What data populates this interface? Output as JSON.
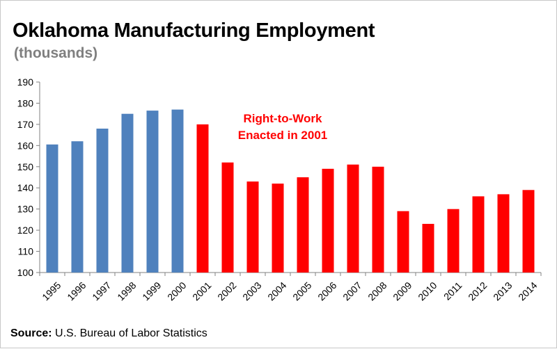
{
  "title": "Oklahoma Manufacturing Employment",
  "subtitle": "(thousands)",
  "annotation": {
    "line1": "Right-to-Work",
    "line2": "Enacted in 2001"
  },
  "source": {
    "label": "Source:",
    "text": " U.S. Bureau of Labor Statistics"
  },
  "colors": {
    "before": "#4f81bd",
    "after": "#ff0000",
    "annotation": "#ff0000",
    "axis": "#808080"
  },
  "chart_data": {
    "type": "bar",
    "title": "Oklahoma Manufacturing Employment",
    "subtitle": "(thousands)",
    "categories": [
      "1995",
      "1996",
      "1997",
      "1998",
      "1999",
      "2000",
      "2001",
      "2002",
      "2003",
      "2004",
      "2005",
      "2006",
      "2007",
      "2008",
      "2009",
      "2010",
      "2011",
      "2012",
      "2013",
      "2014"
    ],
    "values": [
      160.5,
      162,
      168,
      175,
      176.5,
      177,
      170,
      152,
      143,
      142,
      145,
      149,
      151,
      150,
      129,
      123,
      130,
      136,
      137,
      139
    ],
    "bar_colors": [
      "#4f81bd",
      "#4f81bd",
      "#4f81bd",
      "#4f81bd",
      "#4f81bd",
      "#4f81bd",
      "#ff0000",
      "#ff0000",
      "#ff0000",
      "#ff0000",
      "#ff0000",
      "#ff0000",
      "#ff0000",
      "#ff0000",
      "#ff0000",
      "#ff0000",
      "#ff0000",
      "#ff0000",
      "#ff0000",
      "#ff0000"
    ],
    "yticks": [
      "100",
      "110",
      "120",
      "130",
      "140",
      "150",
      "160",
      "170",
      "180",
      "190"
    ],
    "ylim": [
      100,
      190
    ],
    "xlabel": "",
    "ylabel": "",
    "grid": false,
    "legend": "none"
  }
}
